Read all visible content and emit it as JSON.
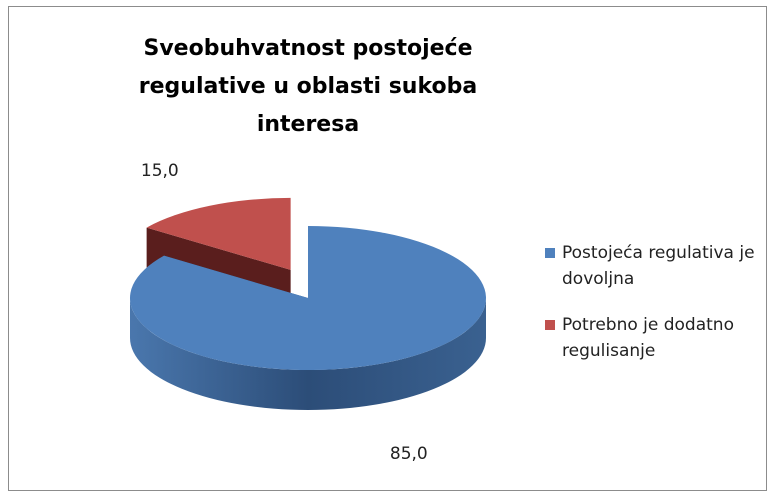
{
  "chart_data": {
    "type": "pie",
    "title": "Sveobuhvatnost postojeće regulative u oblasti sukoba interesa",
    "categories": [
      "Postojeća regulativa je dovoljna",
      "Potrebno je dodatno regulisanje"
    ],
    "values": [
      85,
      15
    ],
    "value_labels": [
      "85,0",
      "15,0"
    ],
    "colors": [
      "#4f81bd",
      "#c0504d"
    ],
    "legend": "right"
  }
}
